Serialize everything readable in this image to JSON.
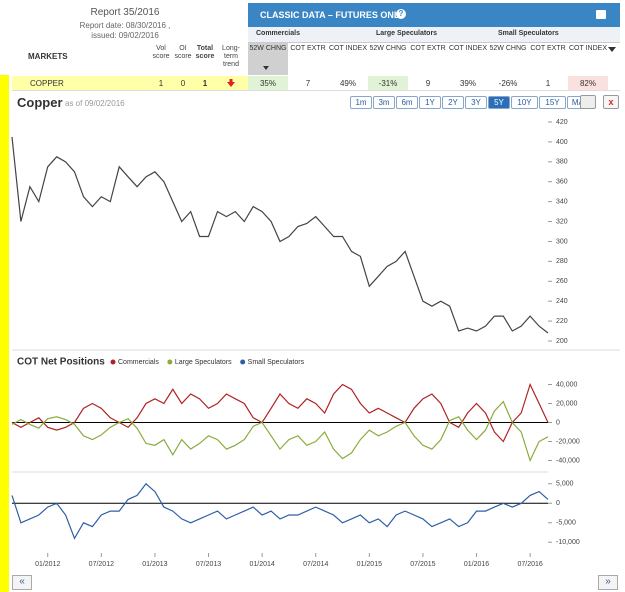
{
  "report": {
    "title": "Report 35/2016",
    "date": "Report date: 08/30/2016 ,",
    "issued": "issued: 09/02/2016"
  },
  "table": {
    "banner": "CLASSIC DATA – FUTURES ONLY",
    "markets_label": "MARKETS",
    "left_columns": [
      "Vol score",
      "OI score",
      "Total score",
      "Long-term trend"
    ],
    "groups": [
      "Commercials",
      "Large Speculators",
      "Small Speculators"
    ],
    "columns": [
      "52W CHNG",
      "COT EXTR",
      "COT INDEX",
      "52W CHNG",
      "COT EXTR",
      "COT INDEX",
      "52W CHNG",
      "COT EXTR",
      "COT INDEX"
    ],
    "row": {
      "market": "COPPER",
      "left_cells": [
        "1",
        "0",
        "1"
      ],
      "cells": [
        "35%",
        "7",
        "49%",
        "-31%",
        "9",
        "39%",
        "-26%",
        "1",
        "82%"
      ]
    }
  },
  "chart_data": [
    {
      "type": "line",
      "title": "Copper",
      "subtitle": "as of 09/02/2016",
      "ranges": [
        "1m",
        "3m",
        "6m",
        "1Y",
        "2Y",
        "3Y",
        "5Y",
        "10Y",
        "15Y",
        "MAX"
      ],
      "selected_range": "5Y",
      "color": "#444444",
      "x": [
        "09/2011",
        "10/2011",
        "11/2011",
        "12/2011",
        "01/2012",
        "02/2012",
        "03/2012",
        "04/2012",
        "05/2012",
        "06/2012",
        "07/2012",
        "08/2012",
        "09/2012",
        "10/2012",
        "11/2012",
        "12/2012",
        "01/2013",
        "02/2013",
        "03/2013",
        "04/2013",
        "05/2013",
        "06/2013",
        "07/2013",
        "08/2013",
        "09/2013",
        "10/2013",
        "11/2013",
        "12/2013",
        "01/2014",
        "02/2014",
        "03/2014",
        "04/2014",
        "05/2014",
        "06/2014",
        "07/2014",
        "08/2014",
        "09/2014",
        "10/2014",
        "11/2014",
        "12/2014",
        "01/2015",
        "02/2015",
        "03/2015",
        "04/2015",
        "05/2015",
        "06/2015",
        "07/2015",
        "08/2015",
        "09/2015",
        "10/2015",
        "11/2015",
        "12/2015",
        "01/2016",
        "02/2016",
        "03/2016",
        "04/2016",
        "05/2016",
        "06/2016",
        "07/2016",
        "08/2016",
        "09/2016"
      ],
      "values": [
        405,
        320,
        355,
        340,
        375,
        385,
        380,
        370,
        345,
        335,
        345,
        340,
        375,
        365,
        355,
        365,
        370,
        360,
        340,
        320,
        330,
        305,
        305,
        330,
        325,
        330,
        320,
        335,
        330,
        320,
        300,
        305,
        315,
        318,
        325,
        315,
        305,
        305,
        290,
        285,
        255,
        265,
        275,
        280,
        290,
        265,
        240,
        235,
        240,
        235,
        210,
        213,
        210,
        215,
        225,
        225,
        210,
        215,
        225,
        215,
        208
      ],
      "xlim": [
        "09/2011",
        "09/2016"
      ],
      "ylim": [
        200,
        420
      ],
      "yticks": [
        200,
        220,
        240,
        260,
        280,
        300,
        320,
        340,
        360,
        380,
        400,
        420
      ]
    },
    {
      "type": "line",
      "title": "COT Net Positions",
      "x": [
        "09/2011",
        "10/2011",
        "11/2011",
        "12/2011",
        "01/2012",
        "02/2012",
        "03/2012",
        "04/2012",
        "05/2012",
        "06/2012",
        "07/2012",
        "08/2012",
        "09/2012",
        "10/2012",
        "11/2012",
        "12/2012",
        "01/2013",
        "02/2013",
        "03/2013",
        "04/2013",
        "05/2013",
        "06/2013",
        "07/2013",
        "08/2013",
        "09/2013",
        "10/2013",
        "11/2013",
        "12/2013",
        "01/2014",
        "02/2014",
        "03/2014",
        "04/2014",
        "05/2014",
        "06/2014",
        "07/2014",
        "08/2014",
        "09/2014",
        "10/2014",
        "11/2014",
        "12/2014",
        "01/2015",
        "02/2015",
        "03/2015",
        "04/2015",
        "05/2015",
        "06/2015",
        "07/2015",
        "08/2015",
        "09/2015",
        "10/2015",
        "11/2015",
        "12/2015",
        "01/2016",
        "02/2016",
        "03/2016",
        "04/2016",
        "05/2016",
        "06/2016",
        "07/2016",
        "08/2016",
        "09/2016"
      ],
      "xlim": [
        "09/2011",
        "09/2016"
      ],
      "xticks": [
        "01/2012",
        "07/2012",
        "01/2013",
        "07/2013",
        "01/2014",
        "07/2014",
        "01/2015",
        "07/2015",
        "01/2016",
        "07/2016"
      ],
      "series": [
        {
          "name": "Commercials",
          "color": "#b22222",
          "axis": "y",
          "values": [
            0,
            -5000,
            0,
            5000,
            -5000,
            -8000,
            -5000,
            0,
            15000,
            20000,
            15000,
            5000,
            0,
            -5000,
            5000,
            20000,
            25000,
            20000,
            35000,
            20000,
            30000,
            25000,
            15000,
            20000,
            30000,
            25000,
            20000,
            5000,
            0,
            15000,
            30000,
            20000,
            15000,
            25000,
            20000,
            10000,
            30000,
            40000,
            35000,
            20000,
            10000,
            15000,
            10000,
            5000,
            0,
            15000,
            25000,
            30000,
            20000,
            0,
            -5000,
            10000,
            20000,
            10000,
            -10000,
            -20000,
            0,
            10000,
            40000,
            20000,
            0
          ]
        },
        {
          "name": "Large Speculators",
          "color": "#8aab3c",
          "axis": "y",
          "values": [
            -2000,
            3000,
            -2000,
            -6000,
            4000,
            6000,
            3000,
            -2000,
            -14000,
            -18000,
            -13000,
            -5000,
            0,
            4000,
            -6000,
            -22000,
            -24000,
            -18000,
            -34000,
            -18000,
            -28000,
            -22000,
            -14000,
            -18000,
            -28000,
            -24000,
            -18000,
            -4000,
            0,
            -14000,
            -28000,
            -18000,
            -14000,
            -24000,
            -20000,
            -10000,
            -28000,
            -38000,
            -32000,
            -18000,
            -8000,
            -14000,
            -10000,
            -4000,
            0,
            -14000,
            -24000,
            -28000,
            -18000,
            2000,
            6000,
            -8000,
            -18000,
            -8000,
            12000,
            22000,
            0,
            -10000,
            -40000,
            -20000,
            -15000
          ]
        },
        {
          "name": "Small Speculators",
          "color": "#2f5fa8",
          "axis": "y2",
          "values": [
            2000,
            -5000,
            -4000,
            -3000,
            -1000,
            0,
            -3000,
            -9000,
            -5000,
            -6000,
            -3000,
            -2000,
            -2000,
            1000,
            2000,
            5000,
            3000,
            -1000,
            -2000,
            -4000,
            -5000,
            -4000,
            -3000,
            -2000,
            -4000,
            -3000,
            -2000,
            -1000,
            -3000,
            -2000,
            -4000,
            -3000,
            -3000,
            -2000,
            -1000,
            -2000,
            -3000,
            -5000,
            -4000,
            -3000,
            -5000,
            -4000,
            -6000,
            -3000,
            -2000,
            -3000,
            -4000,
            -6000,
            -5000,
            -4000,
            -6000,
            -5000,
            -2000,
            -2000,
            -1000,
            0,
            -1000,
            0,
            2000,
            3000,
            1000
          ]
        }
      ],
      "ylim": [
        -50000,
        50000
      ],
      "yticks": [
        {
          "value": -40000,
          "label": "-40,000"
        },
        {
          "value": -20000,
          "label": "-20,000"
        },
        0,
        {
          "value": 20000,
          "label": "20,000"
        },
        {
          "value": 40000,
          "label": "40,000"
        }
      ],
      "y2lim": [
        -12500,
        7500
      ],
      "y2ticks": [
        {
          "value": -10000,
          "label": "-10,000"
        },
        {
          "value": -5000,
          "label": "-5,000"
        },
        0,
        {
          "value": 5000,
          "label": "5,000"
        }
      ]
    }
  ]
}
